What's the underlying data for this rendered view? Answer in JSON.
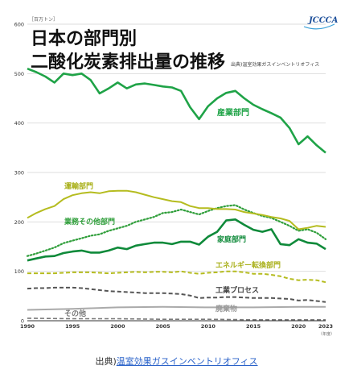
{
  "caption": {
    "prefix": "出典)",
    "link_text": "温室効果ガスインベントリオフィス"
  },
  "chart_data": {
    "type": "line",
    "title_line1": "日本の部門別",
    "title_line2": "二酸化炭素排出量の推移",
    "source_note": "出典)温室効果ガスインベントリオフィス",
    "logo_text": "JCCCA",
    "y_unit": "［百万トン］",
    "x_unit": "（年度）",
    "ylim": [
      0,
      600
    ],
    "yticks": [
      0,
      100,
      200,
      300,
      400,
      500,
      600
    ],
    "xlim": [
      1990,
      2023
    ],
    "xticks": [
      1990,
      1995,
      2000,
      2005,
      2010,
      2015,
      2020,
      2023
    ],
    "grid": true,
    "series": [
      {
        "name": "産業部門",
        "color": "#1fa347",
        "dash": "solid",
        "width": 2.6,
        "x": [
          1990,
          1991,
          1992,
          1993,
          1994,
          1995,
          1996,
          1997,
          1998,
          1999,
          2000,
          2001,
          2002,
          2003,
          2004,
          2005,
          2006,
          2007,
          2008,
          2009,
          2010,
          2011,
          2012,
          2013,
          2014,
          2015,
          2016,
          2017,
          2018,
          2019,
          2020,
          2021,
          2022,
          2023
        ],
        "y": [
          510,
          503,
          494,
          482,
          500,
          497,
          500,
          487,
          460,
          470,
          482,
          470,
          478,
          480,
          477,
          474,
          472,
          465,
          432,
          408,
          434,
          450,
          461,
          465,
          450,
          437,
          428,
          420,
          411,
          390,
          357,
          373,
          355,
          340
        ]
      },
      {
        "name": "運輸部門",
        "color": "#b5bc1f",
        "dash": "solid",
        "width": 2.0,
        "x": [
          1990,
          1991,
          1992,
          1993,
          1994,
          1995,
          1996,
          1997,
          1998,
          1999,
          2000,
          2001,
          2002,
          2003,
          2004,
          2005,
          2006,
          2007,
          2008,
          2009,
          2010,
          2011,
          2012,
          2013,
          2014,
          2015,
          2016,
          2017,
          2018,
          2019,
          2020,
          2021,
          2022,
          2023
        ],
        "y": [
          208,
          218,
          226,
          232,
          246,
          254,
          258,
          260,
          258,
          262,
          263,
          263,
          260,
          255,
          250,
          246,
          242,
          240,
          232,
          228,
          228,
          226,
          226,
          225,
          220,
          217,
          214,
          210,
          207,
          202,
          185,
          188,
          192,
          190
        ]
      },
      {
        "name": "業務その他部門",
        "color": "#2f9e3a",
        "dash": "dotted",
        "width": 2.2,
        "x": [
          1990,
          1991,
          1992,
          1993,
          1994,
          1995,
          1996,
          1997,
          1998,
          1999,
          2000,
          2001,
          2002,
          2003,
          2004,
          2005,
          2006,
          2007,
          2008,
          2009,
          2010,
          2011,
          2012,
          2013,
          2014,
          2015,
          2016,
          2017,
          2018,
          2019,
          2020,
          2021,
          2022,
          2023
        ],
        "y": [
          131,
          136,
          142,
          148,
          157,
          162,
          167,
          172,
          175,
          182,
          187,
          192,
          200,
          205,
          210,
          218,
          220,
          225,
          220,
          215,
          222,
          228,
          232,
          234,
          225,
          218,
          212,
          208,
          200,
          192,
          182,
          185,
          178,
          165
        ]
      },
      {
        "name": "家庭部門",
        "color": "#0f8a3a",
        "dash": "solid",
        "width": 2.6,
        "x": [
          1990,
          1991,
          1992,
          1993,
          1994,
          1995,
          1996,
          1997,
          1998,
          1999,
          2000,
          2001,
          2002,
          2003,
          2004,
          2005,
          2006,
          2007,
          2008,
          2009,
          2010,
          2011,
          2012,
          2013,
          2014,
          2015,
          2016,
          2017,
          2018,
          2019,
          2020,
          2021,
          2022,
          2023
        ],
        "y": [
          122,
          126,
          130,
          131,
          137,
          140,
          142,
          138,
          138,
          142,
          148,
          145,
          152,
          155,
          158,
          158,
          155,
          160,
          160,
          154,
          170,
          180,
          203,
          205,
          194,
          184,
          180,
          185,
          155,
          153,
          165,
          158,
          156,
          145
        ]
      },
      {
        "name": "エネルギー転換部門",
        "color": "#b5bc1f",
        "dash": "dashed",
        "width": 2.0,
        "x": [
          1990,
          1991,
          1992,
          1993,
          1994,
          1995,
          1996,
          1997,
          1998,
          1999,
          2000,
          2001,
          2002,
          2003,
          2004,
          2005,
          2006,
          2007,
          2008,
          2009,
          2010,
          2011,
          2012,
          2013,
          2014,
          2015,
          2016,
          2017,
          2018,
          2019,
          2020,
          2021,
          2022,
          2023
        ],
        "y": [
          96,
          96,
          96,
          96,
          97,
          98,
          98,
          98,
          97,
          96,
          97,
          98,
          99,
          98,
          99,
          99,
          98,
          100,
          97,
          95,
          97,
          98,
          100,
          100,
          98,
          95,
          95,
          93,
          90,
          85,
          82,
          83,
          82,
          78
        ]
      },
      {
        "name": "工業プロセス",
        "color": "#555555",
        "dash": "dashed",
        "width": 2.0,
        "x": [
          1990,
          1991,
          1992,
          1993,
          1994,
          1995,
          1996,
          1997,
          1998,
          1999,
          2000,
          2001,
          2002,
          2003,
          2004,
          2005,
          2006,
          2007,
          2008,
          2009,
          2010,
          2011,
          2012,
          2013,
          2014,
          2015,
          2016,
          2017,
          2018,
          2019,
          2020,
          2021,
          2022,
          2023
        ],
        "y": [
          65,
          66,
          66,
          67,
          67,
          67,
          66,
          64,
          62,
          60,
          59,
          58,
          57,
          56,
          56,
          56,
          55,
          54,
          51,
          46,
          47,
          47,
          48,
          48,
          47,
          46,
          46,
          46,
          45,
          44,
          41,
          42,
          40,
          38
        ]
      },
      {
        "name": "廃棄物",
        "color": "#aaaaaa",
        "dash": "solid",
        "width": 2.0,
        "x": [
          1990,
          1995,
          2000,
          2005,
          2010,
          2015,
          2020,
          2023
        ],
        "y": [
          22,
          24,
          27,
          28,
          27,
          27,
          28,
          28
        ]
      },
      {
        "name": "その他",
        "color": "#777777",
        "dash": "dashed",
        "width": 1.6,
        "x": [
          1990,
          1995,
          2000,
          2005,
          2010,
          2015,
          2020,
          2023
        ],
        "y": [
          5,
          4,
          4,
          3,
          3,
          2,
          2,
          2
        ]
      }
    ]
  }
}
